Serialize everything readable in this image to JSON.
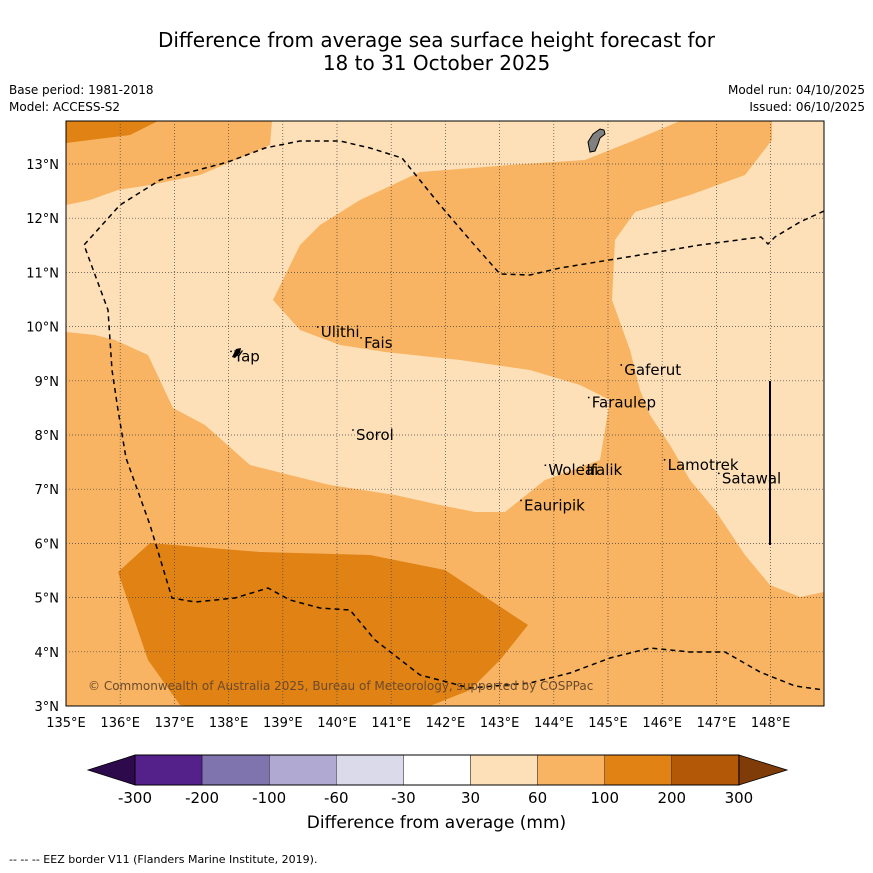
{
  "title": {
    "line1": "Difference from average sea surface height forecast for",
    "line2": "18 to 31 October 2025"
  },
  "header": {
    "base_period": "Base period: 1981-2018",
    "model": "Model: ACCESS-S2",
    "model_run": "Model run: 04/10/2025",
    "issued": "Issued: 06/10/2025"
  },
  "map": {
    "lon_ticks": [
      "135°E",
      "136°E",
      "137°E",
      "138°E",
      "139°E",
      "140°E",
      "141°E",
      "142°E",
      "143°E",
      "144°E",
      "145°E",
      "146°E",
      "147°E",
      "148°E"
    ],
    "lat_ticks": [
      "3°N",
      "4°N",
      "5°N",
      "6°N",
      "7°N",
      "8°N",
      "9°N",
      "10°N",
      "11°N",
      "12°N",
      "13°N"
    ],
    "places": [
      {
        "name": "Yap",
        "lon": 138.1,
        "lat": 9.45
      },
      {
        "name": "Ulithi",
        "lon": 139.7,
        "lat": 9.9
      },
      {
        "name": "Fais",
        "lon": 140.5,
        "lat": 9.7
      },
      {
        "name": "Sorol",
        "lon": 140.35,
        "lat": 8.0
      },
      {
        "name": "Gaferut",
        "lon": 145.3,
        "lat": 9.2
      },
      {
        "name": "Faraulep",
        "lon": 144.7,
        "lat": 8.6
      },
      {
        "name": "Woleai",
        "lon": 143.9,
        "lat": 7.35
      },
      {
        "name": "Ifalik",
        "lon": 144.6,
        "lat": 7.35
      },
      {
        "name": "Lamotrek",
        "lon": 146.1,
        "lat": 7.45
      },
      {
        "name": "Satawal",
        "lon": 147.1,
        "lat": 7.2
      },
      {
        "name": "Eauripik",
        "lon": 143.45,
        "lat": 6.7
      }
    ],
    "copyright": "© Commonwealth of Australia 2025, Bureau of Meteorology, supported by COSPPac"
  },
  "colorbar": {
    "labels": [
      "-300",
      "-200",
      "-100",
      "-60",
      "-30",
      "30",
      "60",
      "100",
      "200",
      "300"
    ],
    "colors": [
      "#54218a",
      "#8074ae",
      "#b0a9d1",
      "#dadaea",
      "#ffffff",
      "#fde0b8",
      "#f8b462",
      "#e08214",
      "#b35806"
    ],
    "under_color": "#2d0a4b",
    "over_color": "#7f3b08",
    "axis_label": "Difference from average (mm)"
  },
  "footer": "--  --  -- EEZ border V11 (Flanders Marine Institute, 2019)."
}
